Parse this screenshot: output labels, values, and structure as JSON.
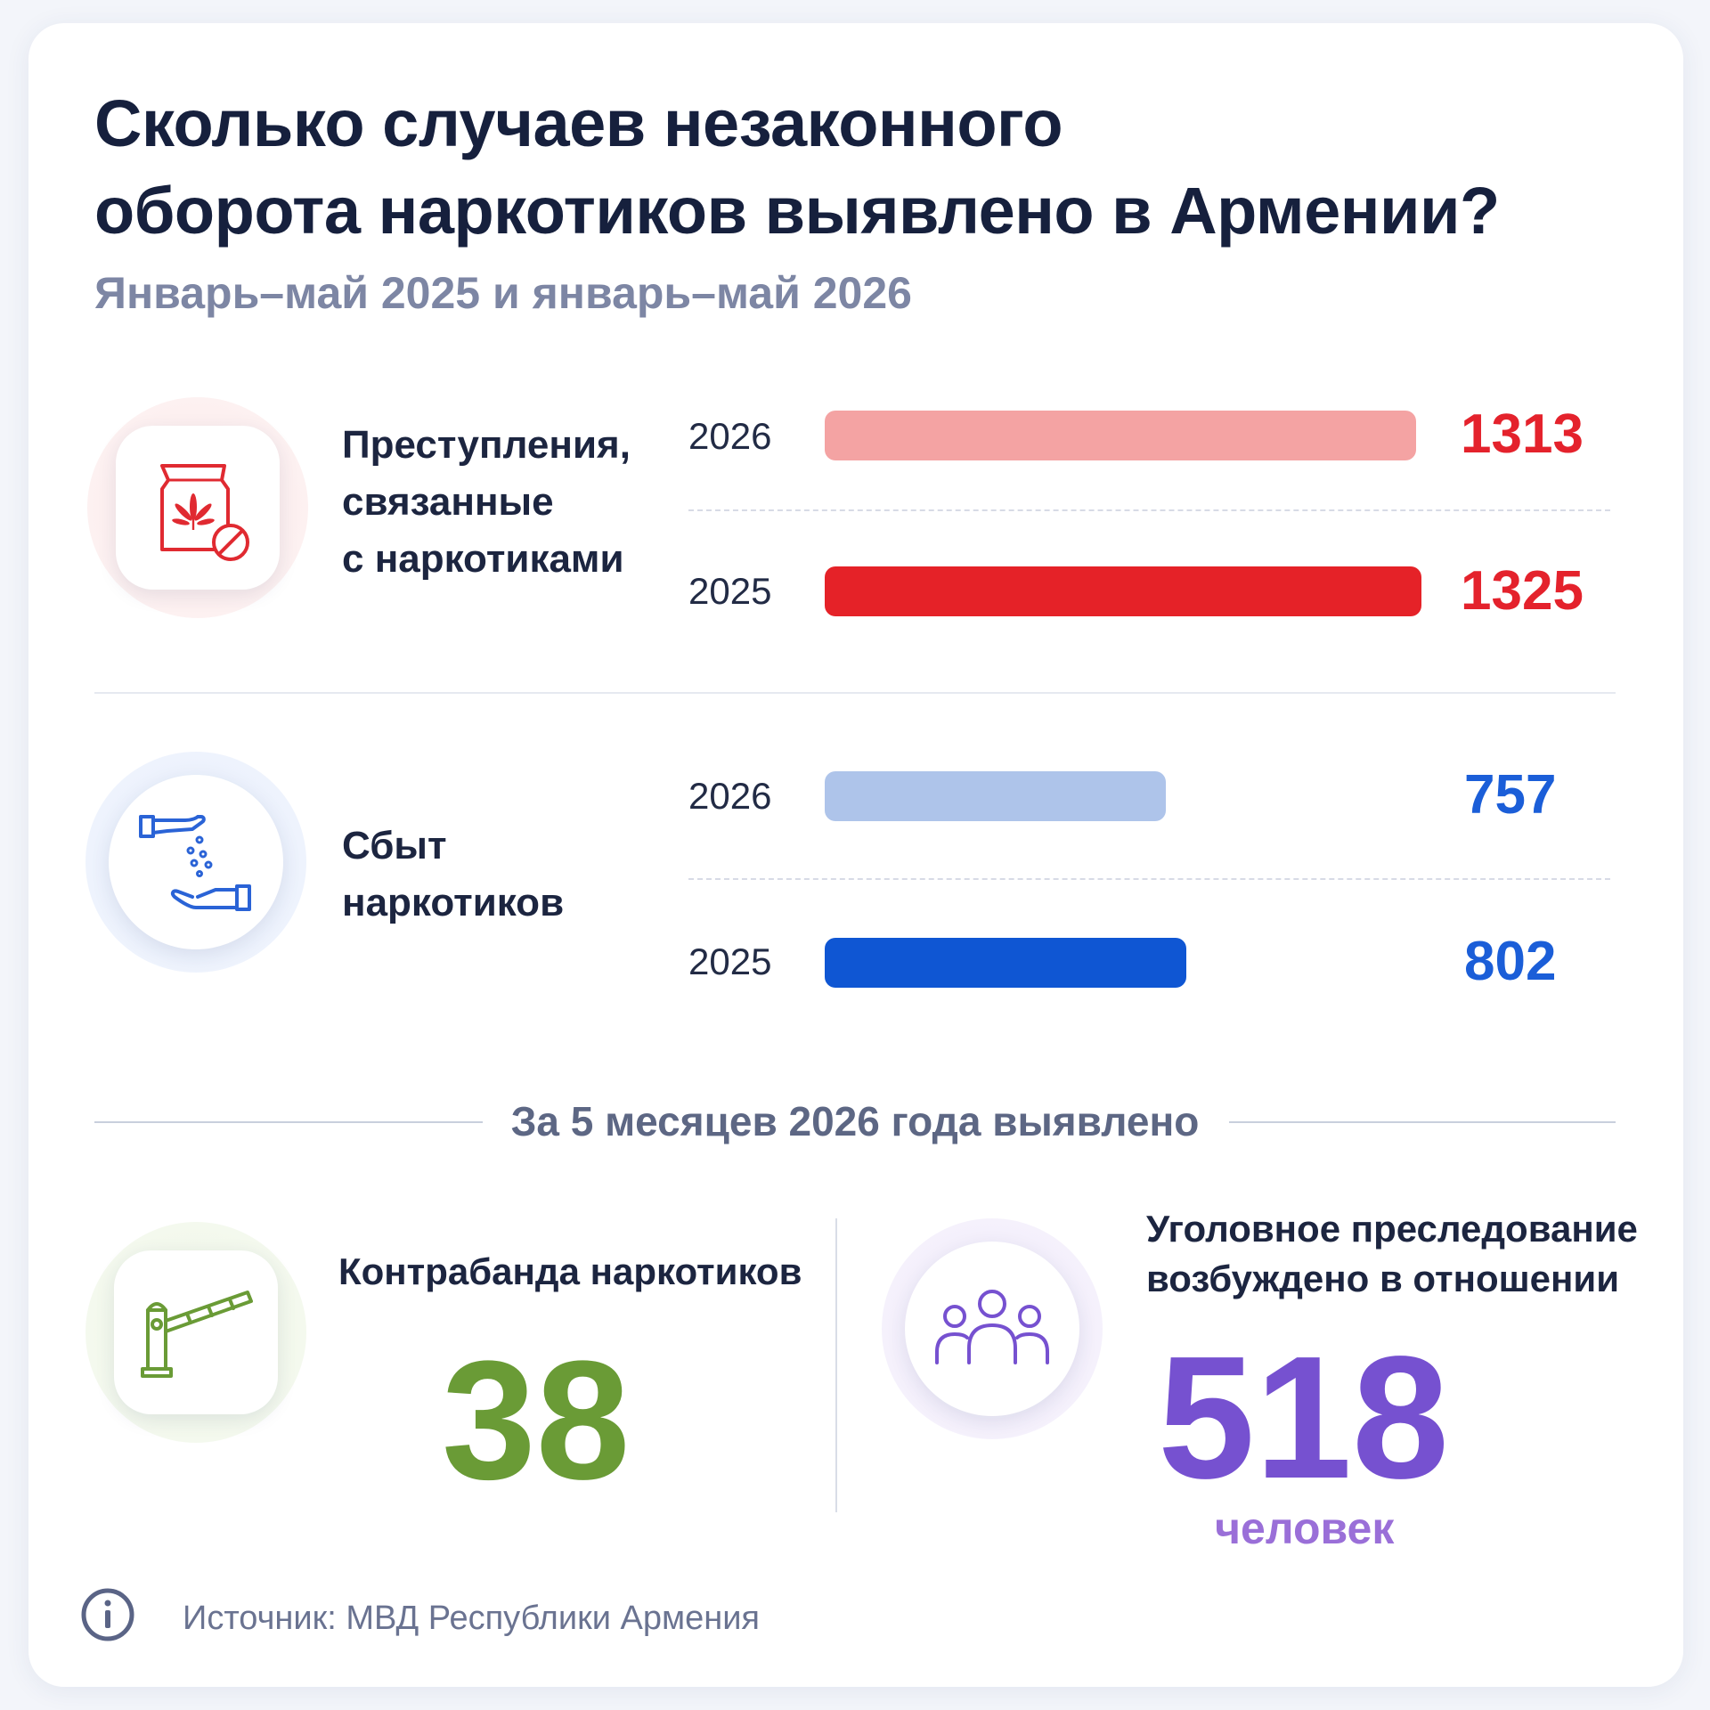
{
  "title_lines": [
    "Сколько случаев незаконного",
    "оборота наркотиков выявлено в Армении?"
  ],
  "subtitle": "Январь–май 2025 и январь–май 2026",
  "chart_data": {
    "type": "bar",
    "orientation": "horizontal",
    "title": "Сколько случаев незаконного оборота наркотиков выявлено в Армении?",
    "subtitle": "Январь–май 2025 и январь–май 2026",
    "xlim": [
      0,
      1325
    ],
    "groups": [
      {
        "label_lines": [
          "Преступления,",
          "связанные",
          "с наркотиками"
        ],
        "icon": "drug-bag-prohibited-icon",
        "bars": [
          {
            "year": "2026",
            "value": 1313,
            "color": "#f4a3a3",
            "label_color": "#e4222c"
          },
          {
            "year": "2025",
            "value": 1325,
            "color": "#e52228",
            "label_color": "#e4222c"
          }
        ]
      },
      {
        "label_lines": [
          "Сбыт",
          "наркотиков"
        ],
        "icon": "hands-exchange-icon",
        "bars": [
          {
            "year": "2026",
            "value": 757,
            "color": "#aec4ea",
            "label_color": "#1b5ed8"
          },
          {
            "year": "2025",
            "value": 802,
            "color": "#0f56d3",
            "label_color": "#1b5ed8"
          }
        ]
      }
    ]
  },
  "summary": {
    "heading": "За 5 месяцев 2026 года выявлено",
    "smuggling": {
      "label": "Контрабанда наркотиков",
      "value": "38",
      "icon": "border-barrier-icon",
      "color": "#6a9b36"
    },
    "prosecution": {
      "label_lines": [
        "Уголовное преследование",
        "возбуждено в отношении"
      ],
      "value": "518",
      "unit": "человек",
      "icon": "people-group-icon",
      "color": "#7651d0"
    }
  },
  "source": "Источник: МВД Республики Армения",
  "colors": {
    "title": "#16203d",
    "subtitle": "#7d86a4",
    "red": "#e52228",
    "blue": "#0f56d3",
    "green": "#6a9b36",
    "purple": "#7651d0"
  }
}
